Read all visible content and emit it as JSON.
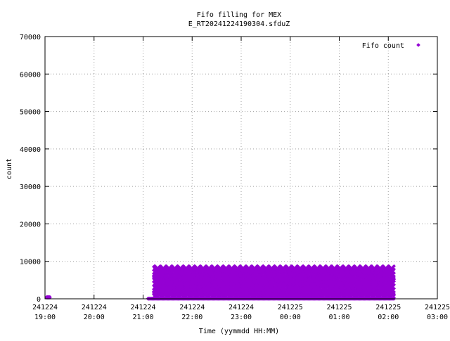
{
  "chart_data": {
    "type": "scatter",
    "title": "Fifo filling for MEX",
    "subtitle": "E_RT20241224190304.sfduZ",
    "xlabel": "Time (yymmdd HH:MM)",
    "ylabel": "count",
    "xlim": [
      "241224 19:00",
      "241225 03:00"
    ],
    "ylim": [
      0,
      70000
    ],
    "grid": true,
    "legend": "top-right",
    "x_ticks": [
      {
        "date": "241224",
        "time": "19:00"
      },
      {
        "date": "241224",
        "time": "20:00"
      },
      {
        "date": "241224",
        "time": "21:00"
      },
      {
        "date": "241224",
        "time": "22:00"
      },
      {
        "date": "241224",
        "time": "23:00"
      },
      {
        "date": "241225",
        "time": "00:00"
      },
      {
        "date": "241225",
        "time": "01:00"
      },
      {
        "date": "241225",
        "time": "02:00"
      },
      {
        "date": "241225",
        "time": "03:00"
      }
    ],
    "y_ticks": [
      "0",
      "10000",
      "20000",
      "30000",
      "40000",
      "50000",
      "60000",
      "70000"
    ],
    "series": [
      {
        "name": "Fifo count",
        "color": "#9400d3",
        "marker": "diamond",
        "description_pattern": "sawtooth fills, sampled per minute",
        "segments": [
          {
            "start": "241224 19:02",
            "end": "241224 19:06",
            "levels": [
              300,
              500
            ]
          },
          {
            "start": "241224 21:06",
            "end": "241224 21:12",
            "levels": [
              0,
              100
            ]
          },
          {
            "start": "241224 21:13",
            "end": "241225 02:07",
            "levels": [
              0,
              300,
              850,
              1500,
              2200,
              2900,
              3600,
              4300,
              5000,
              5700,
              6400,
              7100,
              7800,
              8400
            ]
          }
        ]
      }
    ]
  }
}
